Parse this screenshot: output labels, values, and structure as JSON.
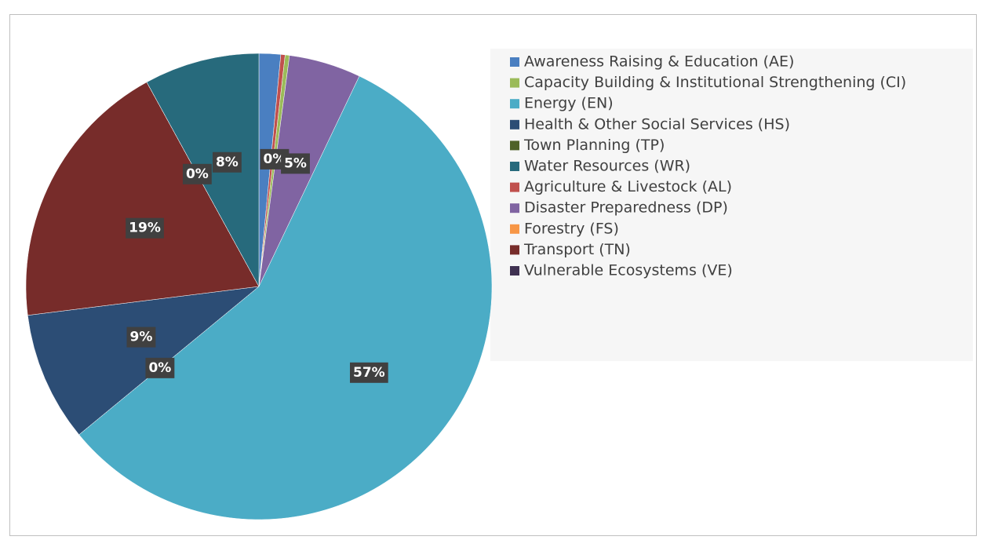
{
  "chart_data": {
    "type": "pie",
    "categories": [
      "Awareness Raising & Education (AE)",
      "Agriculture & Livestock (AL)",
      "Capacity Building & Institutional Strengthening (CI)",
      "Disaster Preparedness (DP)",
      "Energy (EN)",
      "Forestry (FS)",
      "Health & Other Social Services (HS)",
      "Transport (TN)",
      "Town Planning (TP)",
      "Vulnerable Ecosystems (VE)",
      "Water Resources (WR)"
    ],
    "values": [
      1.5,
      0.3,
      0.3,
      5,
      57,
      0,
      9,
      19,
      0,
      0,
      8
    ],
    "value_labels": [
      null,
      null,
      "0%",
      "5%",
      "57%",
      "0%",
      "9%",
      "19%",
      "0%",
      null,
      "8%"
    ],
    "colors": [
      "#4a7fc1",
      "#c0504d",
      "#9bbb59",
      "#8064a2",
      "#4bacc6",
      "#f79646",
      "#2c4d75",
      "#772c2a",
      "#4f6228",
      "#3f3151",
      "#276a7c"
    ]
  }
}
